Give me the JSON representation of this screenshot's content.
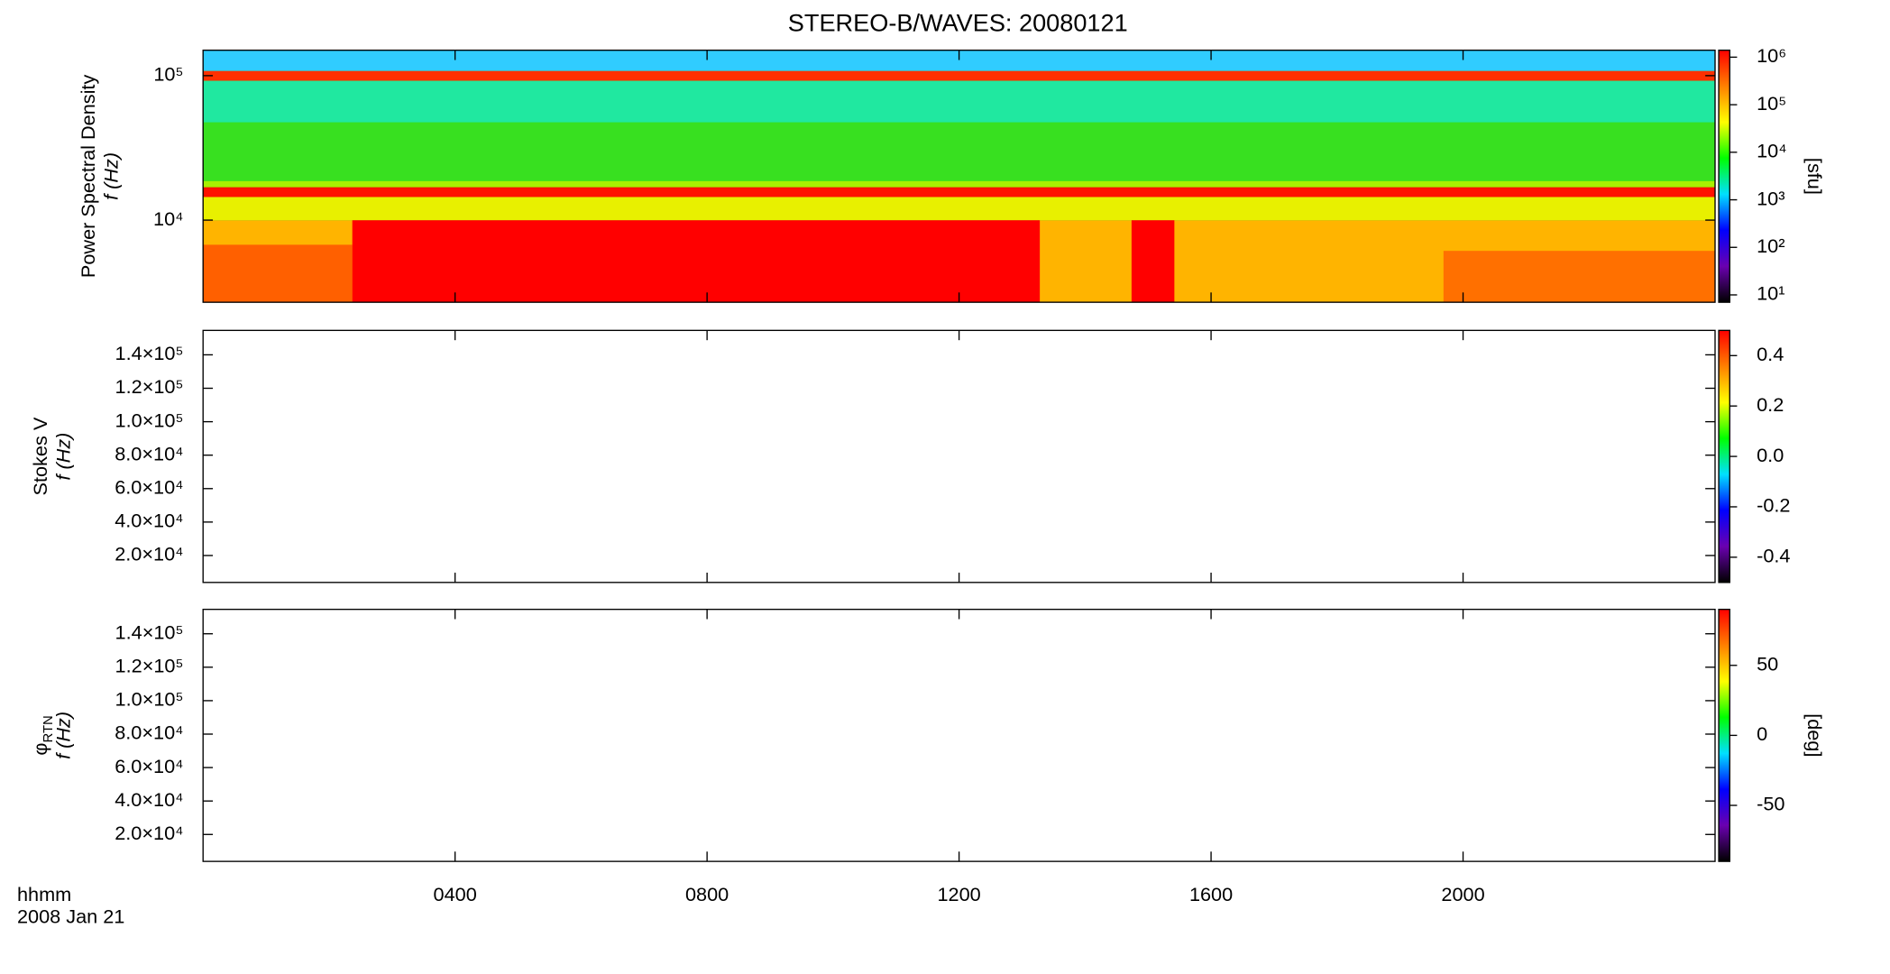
{
  "title": "STEREO-B/WAVES: 20080121",
  "time_axis": {
    "label": "hhmm",
    "date": "2008 Jan 21",
    "xlim": [
      0,
      24
    ],
    "xticks": [
      {
        "value": 4,
        "label": "0400"
      },
      {
        "value": 8,
        "label": "0800"
      },
      {
        "value": 12,
        "label": "1200"
      },
      {
        "value": 16,
        "label": "1600"
      },
      {
        "value": 20,
        "label": "2000"
      }
    ]
  },
  "colormap": [
    "#000000",
    "#6a00b0",
    "#0000ff",
    "#00e0ff",
    "#00ff00",
    "#ffff00",
    "#ff8000",
    "#ff0000"
  ],
  "chart_data": [
    {
      "type": "heatmap",
      "ylabel": "Power Spectral Density",
      "ylabel2": "f (Hz)",
      "ylog": true,
      "ylim": [
        2700,
        150000
      ],
      "yticks": [
        {
          "value": 10000,
          "label": "10⁴"
        },
        {
          "value": 100000,
          "label": "10⁵"
        }
      ],
      "clog": true,
      "clim": [
        7,
        1400000
      ],
      "cticks": [
        {
          "value": 10,
          "label": "10¹"
        },
        {
          "value": 100,
          "label": "10²"
        },
        {
          "value": 1000,
          "label": "10³"
        },
        {
          "value": 10000,
          "label": "10⁴"
        },
        {
          "value": 100000,
          "label": "10⁵"
        },
        {
          "value": 1000000,
          "label": "10⁶"
        }
      ],
      "clabel": "[sfu]"
    },
    {
      "type": "heatmap",
      "ylabel": "Stokes V",
      "ylabel2": "f (Hz)",
      "ylim": [
        3900,
        154600
      ],
      "yticks": [
        {
          "value": 20000,
          "label": "2.0×10⁴"
        },
        {
          "value": 40000,
          "label": "4.0×10⁴"
        },
        {
          "value": 60000,
          "label": "6.0×10⁴"
        },
        {
          "value": 80000,
          "label": "8.0×10⁴"
        },
        {
          "value": 100000,
          "label": "1.0×10⁵"
        },
        {
          "value": 120000,
          "label": "1.2×10⁵"
        },
        {
          "value": 140000,
          "label": "1.4×10⁵"
        }
      ],
      "clim": [
        -0.5,
        0.5
      ],
      "cticks": [
        -0.4,
        -0.2,
        {
          "value": 0,
          "label": "0.0"
        },
        0.2,
        0.4
      ]
    },
    {
      "type": "heatmap",
      "ylabel": "φ",
      "ylabel_subscript": "RTN",
      "ylabel2": "f (Hz)",
      "ylim": [
        3900,
        154600
      ],
      "yticks": [
        {
          "value": 20000,
          "label": "2.0×10⁴"
        },
        {
          "value": 40000,
          "label": "4.0×10⁴"
        },
        {
          "value": 60000,
          "label": "6.0×10⁴"
        },
        {
          "value": 80000,
          "label": "8.0×10⁴"
        },
        {
          "value": 100000,
          "label": "1.0×10⁵"
        },
        {
          "value": 120000,
          "label": "1.2×10⁵"
        },
        {
          "value": 140000,
          "label": "1.4×10⁵"
        }
      ],
      "clim": [
        -90,
        90
      ],
      "cticks": [
        -50,
        0,
        50
      ],
      "clabel": "[deg]"
    }
  ]
}
